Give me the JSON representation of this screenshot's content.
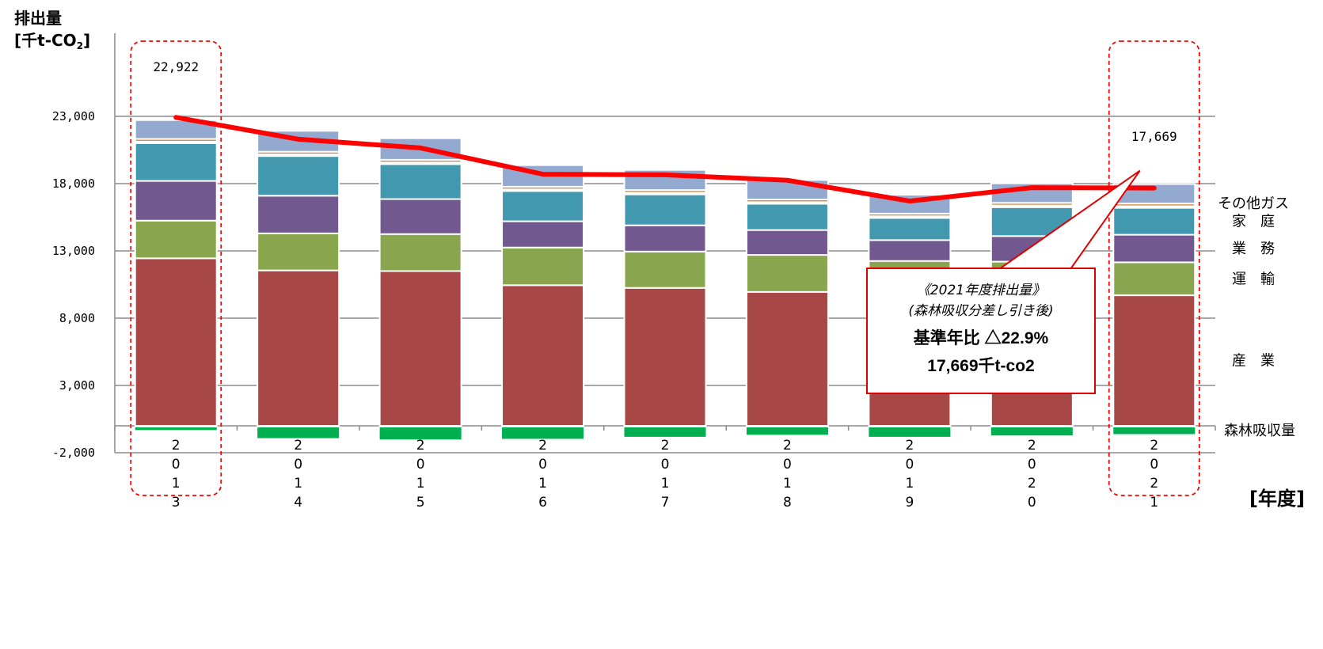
{
  "chart_data": {
    "type": "bar",
    "stacked": true,
    "ylabel": "排出量",
    "yunit_prefix": "[千t-CO",
    "yunit_sub": "2",
    "yunit_suffix": "]",
    "xunit": "[年度]",
    "ylim": [
      -2000,
      25000
    ],
    "yticks": [
      23000,
      18000,
      13000,
      8000,
      3000,
      -2000
    ],
    "ytick_labels": [
      "23,000",
      "18,000",
      "13,000",
      "8,000",
      "3,000",
      "-2,000"
    ],
    "categories": [
      "2013",
      "2014",
      "2015",
      "2016",
      "2017",
      "2018",
      "2019",
      "2020",
      "2021"
    ],
    "series": [
      {
        "name": "産　業",
        "color": "#a84846",
        "values": [
          12450,
          11550,
          11500,
          10450,
          10250,
          9950,
          9700,
          9750,
          9700
        ]
      },
      {
        "name": "運　輸",
        "color": "#89a54e",
        "values": [
          2800,
          2750,
          2750,
          2800,
          2700,
          2750,
          2550,
          2450,
          2450
        ]
      },
      {
        "name": "業　務",
        "color": "#71588f",
        "values": [
          2950,
          2800,
          2600,
          1950,
          1950,
          1850,
          1550,
          1900,
          2050
        ]
      },
      {
        "name": "家　庭",
        "color": "#4198af",
        "values": [
          2800,
          2950,
          2600,
          2250,
          2300,
          1950,
          1650,
          2150,
          2000
        ]
      },
      {
        "name": "",
        "color": "#ffffff",
        "values": [
          120,
          120,
          120,
          120,
          120,
          120,
          120,
          120,
          120
        ]
      },
      {
        "name": "",
        "color": "#db843d",
        "values": [
          200,
          200,
          200,
          200,
          200,
          200,
          200,
          200,
          200
        ]
      },
      {
        "name": "その他ガス",
        "color": "#93a9cf",
        "values": [
          1400,
          1550,
          1600,
          1600,
          1500,
          1450,
          1400,
          1450,
          1450
        ]
      }
    ],
    "forest_name": "森林吸収量",
    "forest_color": "#00b050",
    "forest_values": [
      -200,
      -800,
      -900,
      -850,
      -700,
      -550,
      -700,
      -600,
      -500
    ],
    "line_name": "森林吸収分差し引き後",
    "line_color": "#ff0000",
    "line_values": [
      22922,
      21300,
      20650,
      18700,
      18650,
      18250,
      16700,
      17700,
      17669
    ],
    "value_labels": [
      {
        "category": "2013",
        "text": "22,922"
      },
      {
        "category": "2021",
        "text": "17,669"
      }
    ],
    "callout": {
      "line1": "《2021年度排出量》",
      "line2": "(森林吸収分差し引き後)",
      "line3": "基準年比 △22.9%",
      "line4": "17,669千t-co2"
    },
    "highlighted_categories": [
      "2013",
      "2021"
    ],
    "grid": true
  }
}
